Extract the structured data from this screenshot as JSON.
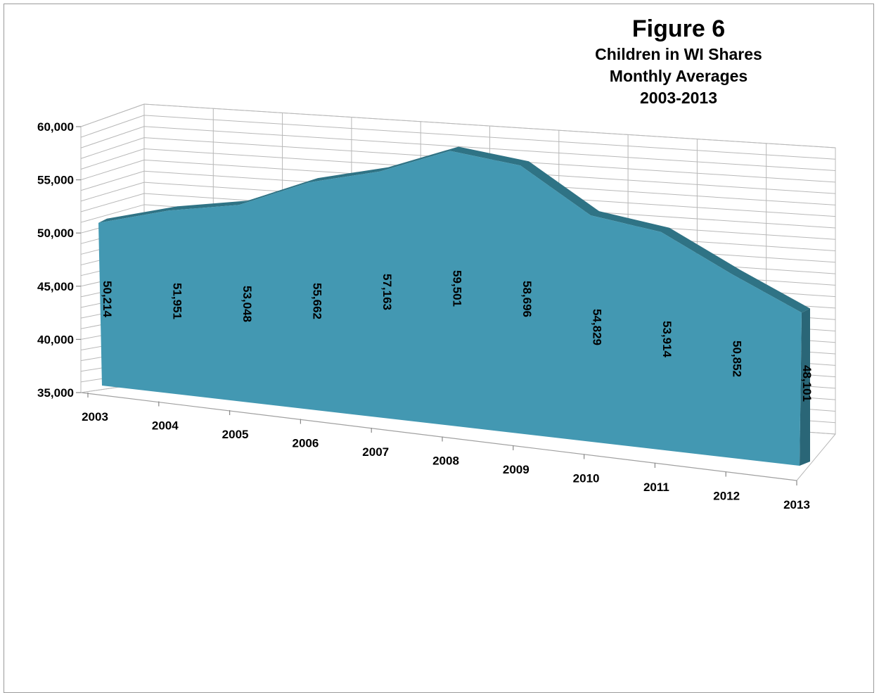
{
  "chart_data": {
    "type": "area",
    "title": "Figure 6",
    "subtitle_lines": [
      "Children in WI Shares",
      "Monthly Averages",
      "2003-2013"
    ],
    "categories": [
      "2003",
      "2004",
      "2005",
      "2006",
      "2007",
      "2008",
      "2009",
      "2010",
      "2011",
      "2012",
      "2013"
    ],
    "values": [
      50214,
      51951,
      53048,
      55662,
      57163,
      59501,
      58696,
      54829,
      53914,
      50852,
      48101
    ],
    "data_labels": [
      "50,214",
      "51,951",
      "53,048",
      "55,662",
      "57,163",
      "59,501",
      "58,696",
      "54,829",
      "53,914",
      "50,852",
      "48,101"
    ],
    "y_ticks": [
      "35,000",
      "40,000",
      "45,000",
      "50,000",
      "55,000",
      "60,000"
    ],
    "ylim": [
      35000,
      60000
    ],
    "grid": true,
    "legend": "none",
    "color": "#4398b2"
  }
}
